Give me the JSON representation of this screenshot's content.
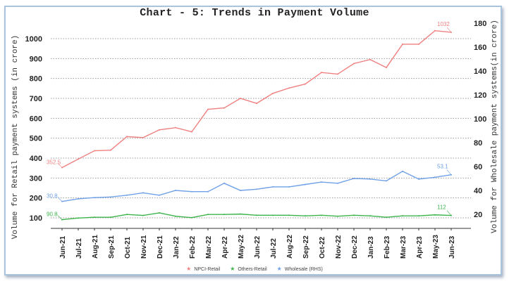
{
  "chart_data": {
    "type": "line",
    "title": "Chart - 5: Trends in Payment Volume",
    "xlabel": "",
    "ylabel": "Volume for Retail payment systems (in crore)",
    "y2label": "Volume for Wholesale payment systems(in crore)",
    "ylim": [
      100,
      1000
    ],
    "y2lim": [
      20,
      180
    ],
    "yticks": [
      100,
      200,
      300,
      400,
      500,
      600,
      700,
      800,
      900,
      1000
    ],
    "y2ticks": [
      20,
      40,
      60,
      80,
      100,
      120,
      140,
      160,
      180
    ],
    "grid": true,
    "legend_position": "bottom",
    "categories": [
      "Jun-21",
      "Jul-21",
      "Aug-21",
      "Sep-21",
      "Oct-21",
      "Nov-21",
      "Dec-21",
      "Jan-22",
      "Feb-22",
      "Mar-22",
      "Apr-22",
      "May-22",
      "Jun-22",
      "Jul-22",
      "Aug-22",
      "Sep-22",
      "Oct-22",
      "Nov-22",
      "Dec-22",
      "Jan-23",
      "Feb-23",
      "Mar-23",
      "Apr-23",
      "May-23",
      "Jun-23"
    ],
    "series": [
      {
        "name": "NPCI-Retail",
        "axis": "left",
        "color": "#f08080",
        "values": [
          352.5,
          395,
          437,
          440,
          508,
          503,
          542,
          553,
          532,
          645,
          652,
          700,
          675,
          725,
          752,
          772,
          830,
          822,
          875,
          895,
          855,
          972,
          972,
          1040,
          1032
        ],
        "labels": {
          "first": "352.5",
          "last": "1032"
        }
      },
      {
        "name": "Others-Retail",
        "axis": "left",
        "color": "#3cb44b",
        "values": [
          90.8,
          99,
          103,
          103,
          117,
          112,
          125,
          108,
          101,
          117,
          117,
          119,
          113,
          113,
          113,
          110,
          113,
          108,
          113,
          110,
          103,
          110,
          110,
          115,
          112
        ],
        "labels": {
          "first": "90.8",
          "last": "112"
        }
      },
      {
        "name": "Wholesale (RHS)",
        "axis": "right",
        "color": "#6fa0e8",
        "values": [
          30.8,
          33,
          34,
          34.5,
          36,
          38,
          36,
          40,
          39,
          39,
          46,
          40,
          41,
          43,
          43,
          45,
          47,
          46,
          50,
          49.5,
          48,
          56,
          49.5,
          51,
          53.1
        ],
        "labels": {
          "first": "30.8",
          "last": "53.1"
        }
      }
    ]
  },
  "legend": {
    "items": [
      {
        "label": "NPCI-Retail",
        "marker": "★",
        "color": "#f08080"
      },
      {
        "label": "Others-Retail",
        "marker": "★",
        "color": "#3cb44b"
      },
      {
        "label": "Wholesale (RHS)",
        "marker": "★",
        "color": "#6fa0e8"
      }
    ]
  }
}
